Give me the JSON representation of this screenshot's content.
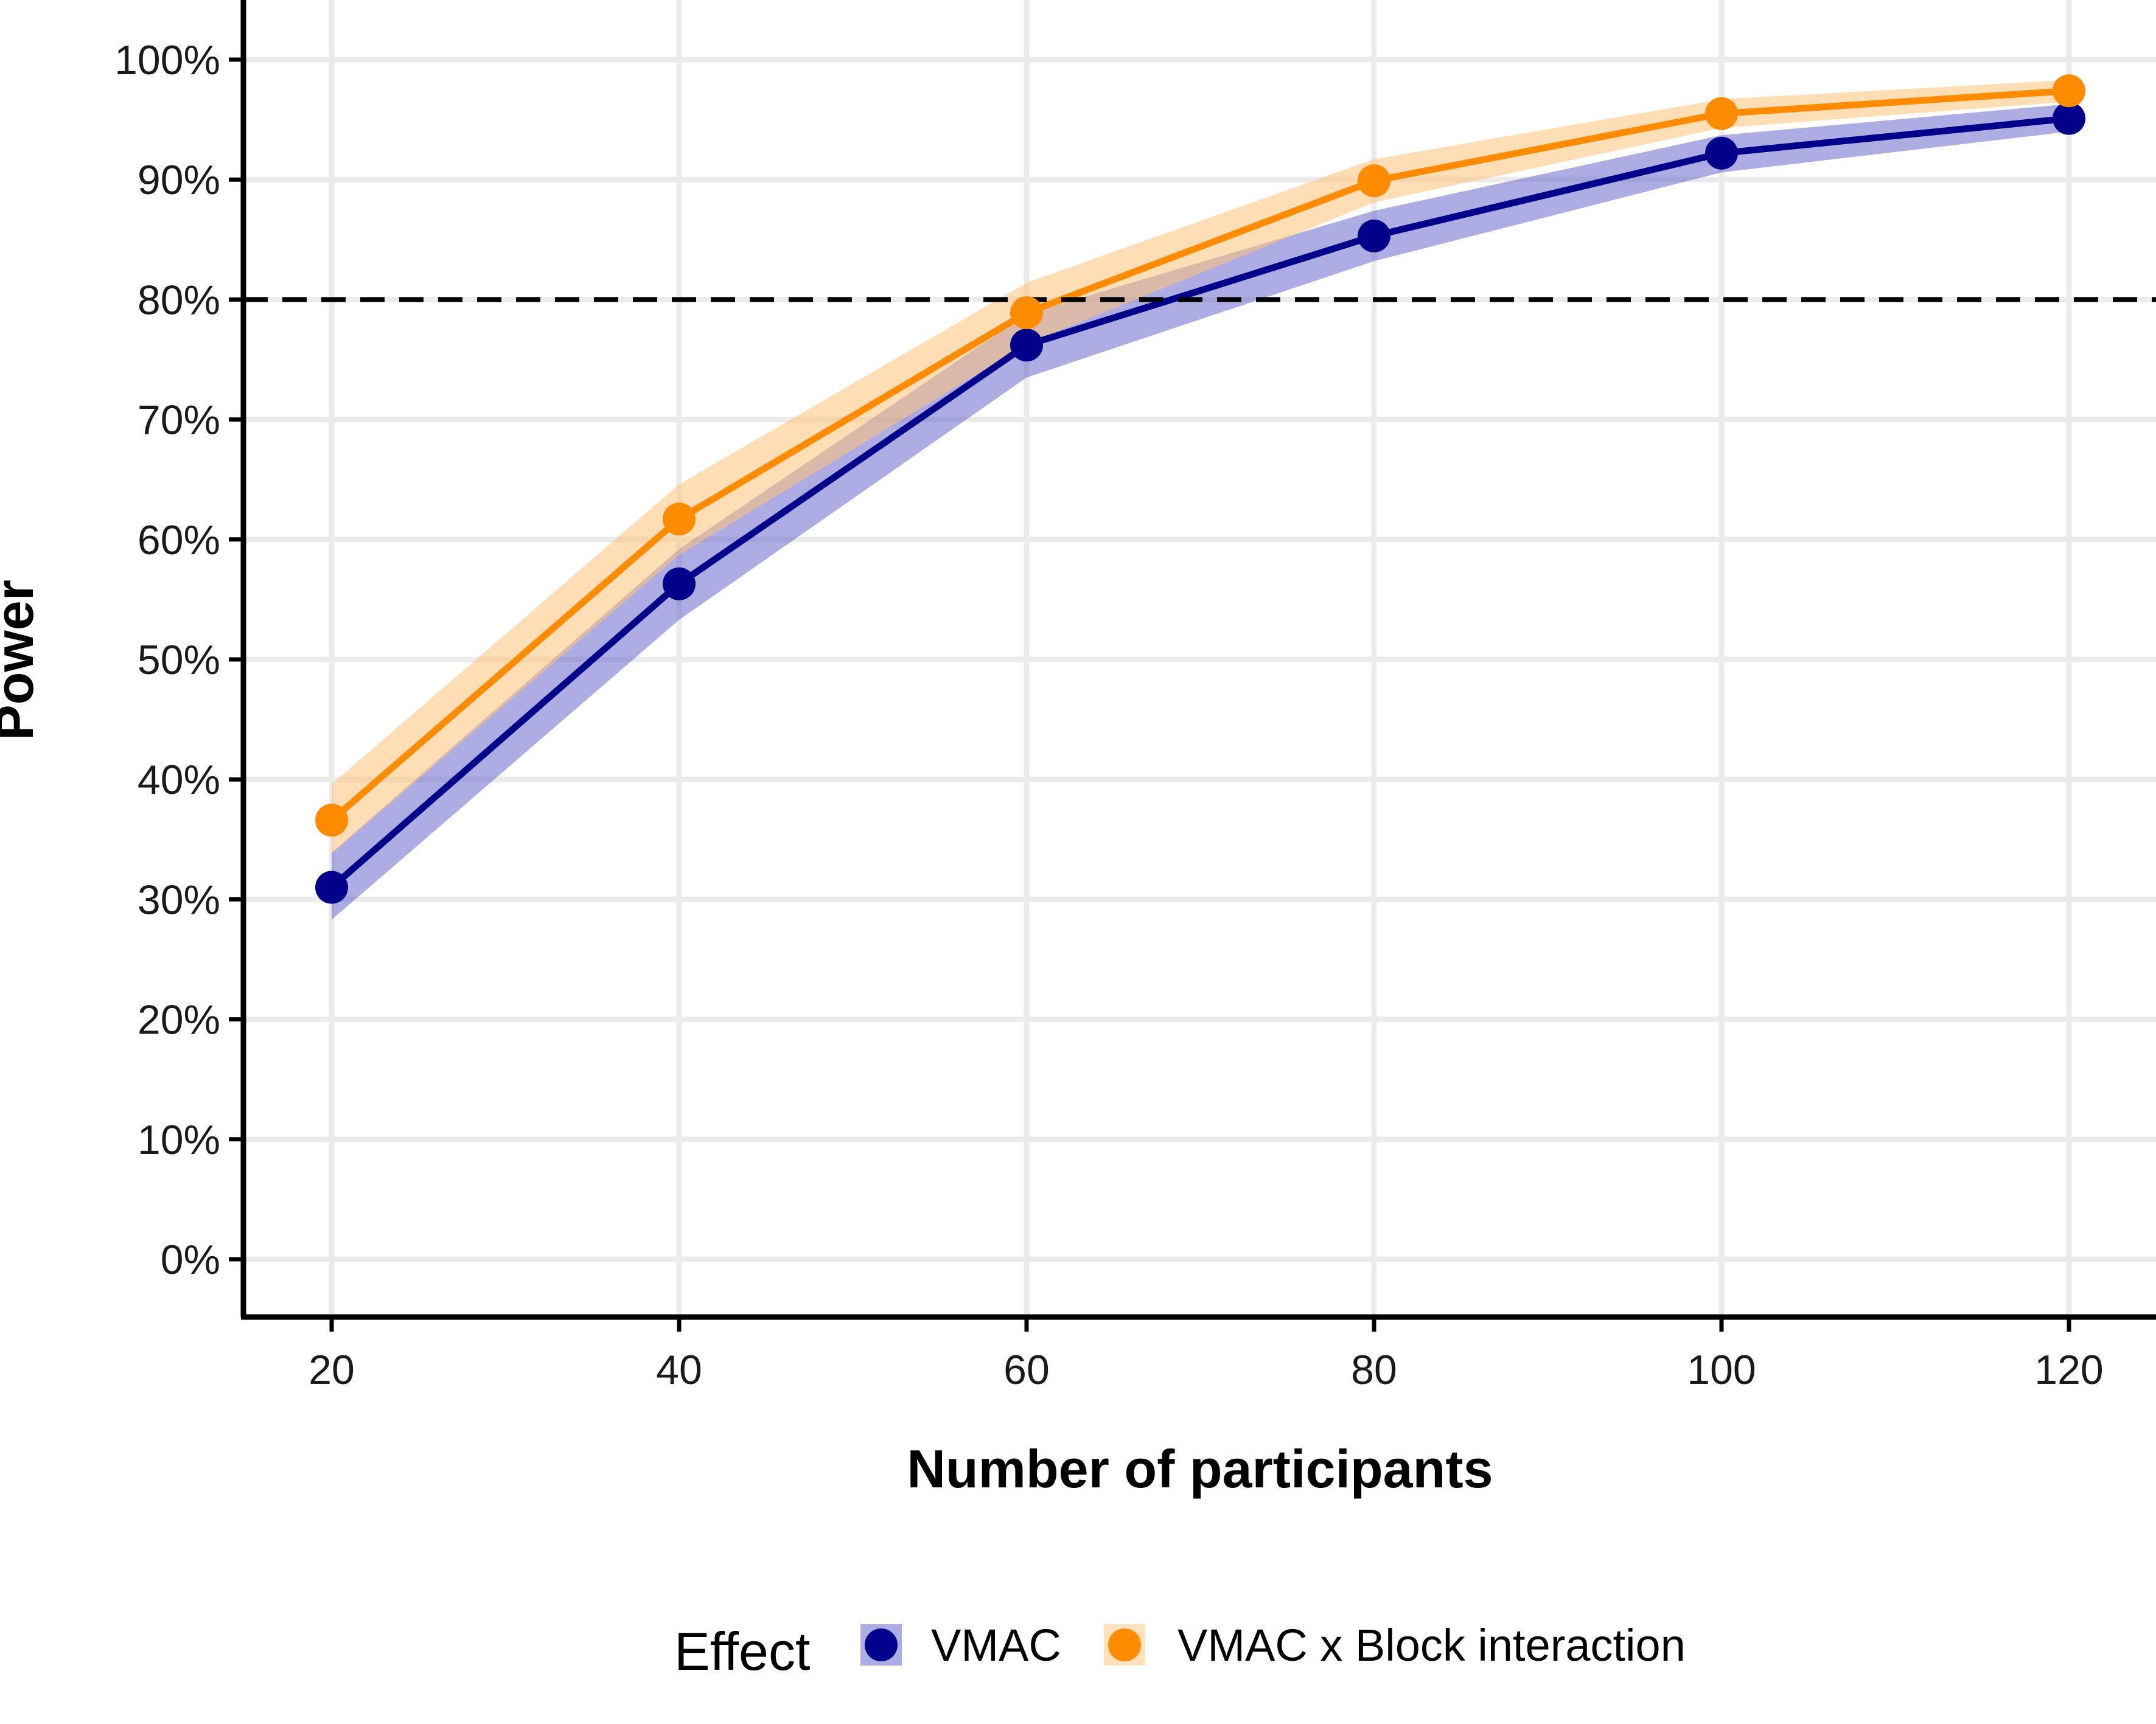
{
  "chart_data": {
    "type": "line",
    "xlabel": "Number of participants",
    "ylabel": "Power",
    "x": [
      20,
      40,
      60,
      80,
      100,
      120
    ],
    "xticks": [
      "20",
      "40",
      "60",
      "80",
      "100",
      "120"
    ],
    "yticks": [
      "0%",
      "10%",
      "20%",
      "30%",
      "40%",
      "50%",
      "60%",
      "70%",
      "80%",
      "90%",
      "100%"
    ],
    "xlim": [
      15,
      125
    ],
    "ylim": [
      -0.05,
      1.05
    ],
    "reference_line": {
      "y": 0.8,
      "style": "dashed"
    },
    "grid": true,
    "legend": {
      "title": "Effect",
      "position": "bottom"
    },
    "series": [
      {
        "name": "VMAC",
        "color": "#00008B",
        "band_color": "#5B5BC8",
        "values": [
          0.31,
          0.563,
          0.762,
          0.853,
          0.922,
          0.951
        ],
        "lower": [
          0.283,
          0.533,
          0.735,
          0.832,
          0.906,
          0.94
        ],
        "upper": [
          0.339,
          0.592,
          0.788,
          0.874,
          0.937,
          0.963
        ]
      },
      {
        "name": "VMAC x Block interaction",
        "color": "#FF8C00",
        "band_color": "#FFC27A",
        "values": [
          0.366,
          0.617,
          0.789,
          0.899,
          0.955,
          0.974
        ],
        "lower": [
          0.338,
          0.587,
          0.763,
          0.881,
          0.943,
          0.965
        ],
        "upper": [
          0.396,
          0.646,
          0.814,
          0.917,
          0.967,
          0.983
        ]
      }
    ]
  }
}
